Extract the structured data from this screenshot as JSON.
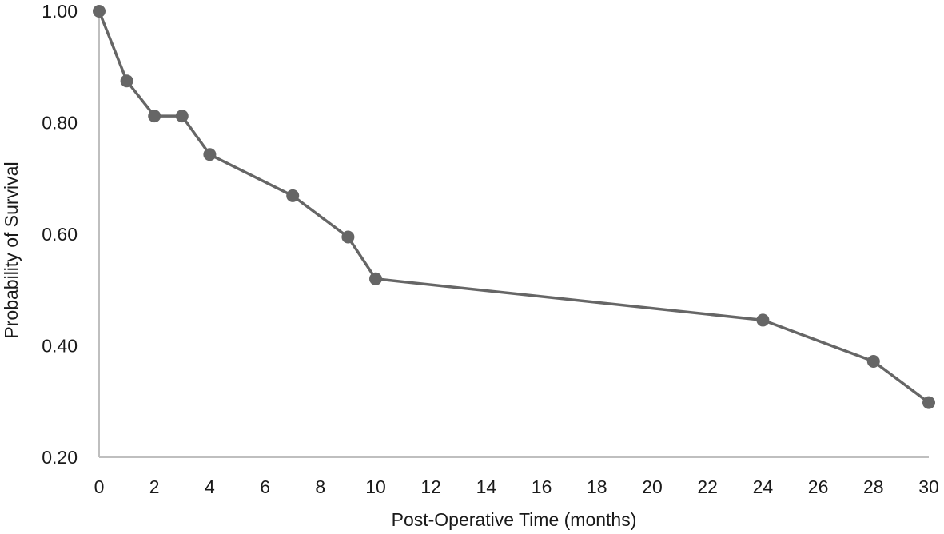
{
  "chart_data": {
    "type": "line",
    "title": "",
    "xlabel": "Post-Operative Time (months)",
    "ylabel": "Probability of Survival",
    "xlim": [
      0,
      30
    ],
    "ylim": [
      0.2,
      1.0
    ],
    "x_ticks": [
      "0",
      "2",
      "4",
      "6",
      "8",
      "10",
      "12",
      "14",
      "16",
      "18",
      "20",
      "22",
      "24",
      "26",
      "28",
      "30"
    ],
    "y_ticks": [
      "0.20",
      "0.40",
      "0.60",
      "0.80",
      "1.00"
    ],
    "grid": false,
    "legend": "none",
    "colors": {
      "series": "#666666",
      "axis": "#bfbfbf",
      "text": "#1a1a1a"
    },
    "series": [
      {
        "x": [
          0,
          1,
          2,
          3,
          4,
          7,
          9,
          10,
          24,
          28,
          30
        ],
        "y": [
          1.0,
          0.875,
          0.812,
          0.812,
          0.743,
          0.669,
          0.595,
          0.52,
          0.446,
          0.372,
          0.298
        ]
      }
    ]
  }
}
